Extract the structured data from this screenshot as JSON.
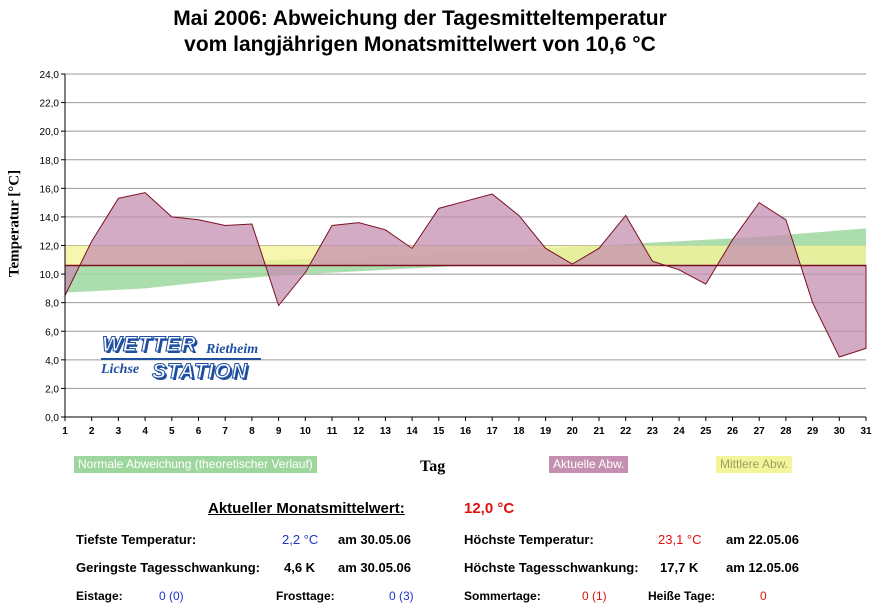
{
  "title_line1": "Mai 2006: Abweichung der Tagesmitteltemperatur",
  "title_line2": "vom langjährigen Monatsmittelwert von 10,6 °C",
  "chart_data": {
    "type": "area",
    "x": [
      1,
      2,
      3,
      4,
      5,
      6,
      7,
      8,
      9,
      10,
      11,
      12,
      13,
      14,
      15,
      16,
      17,
      18,
      19,
      20,
      21,
      22,
      23,
      24,
      25,
      26,
      27,
      28,
      29,
      30,
      31
    ],
    "baseline": 10.6,
    "ylim": [
      0,
      24
    ],
    "yticks": [
      "0,0",
      "2,0",
      "4,0",
      "6,0",
      "8,0",
      "10,0",
      "12,0",
      "14,0",
      "16,0",
      "18,0",
      "20,0",
      "22,0",
      "24,0"
    ],
    "ylabel": "Temperatur [°C]",
    "xlabel": "Tag",
    "series": [
      {
        "name": "Aktuelle Abw.",
        "color": "#c58fb2",
        "values": [
          8.5,
          12.3,
          15.3,
          15.7,
          14.0,
          13.8,
          13.4,
          13.5,
          7.8,
          10.1,
          13.4,
          13.6,
          13.1,
          11.8,
          14.6,
          15.1,
          15.6,
          14.1,
          11.8,
          10.7,
          11.8,
          14.1,
          10.9,
          10.3,
          9.3,
          12.4,
          15.0,
          13.8,
          8.0,
          4.2,
          4.8
        ]
      },
      {
        "name": "Normale Abweichung (theoretischer Verlauf)",
        "color": "#9ed79e",
        "upper": [
          10.6,
          10.65,
          10.7,
          10.75,
          10.8,
          10.85,
          10.9,
          10.95,
          11.0,
          11.05,
          11.1,
          11.15,
          11.2,
          11.3,
          11.4,
          11.5,
          11.6,
          11.7,
          11.8,
          11.9,
          12.0,
          12.1,
          12.2,
          12.3,
          12.4,
          12.5,
          12.6,
          12.75,
          12.9,
          13.05,
          13.2
        ],
        "lower": [
          8.7,
          8.8,
          8.9,
          9.0,
          9.2,
          9.4,
          9.6,
          9.75,
          9.9,
          10.0,
          10.1,
          10.2,
          10.3,
          10.4,
          10.5,
          10.6,
          10.6,
          10.6,
          10.6,
          10.6,
          10.6,
          10.6,
          10.6,
          10.6,
          10.6,
          10.6,
          10.6,
          10.6,
          10.6,
          10.6,
          10.6
        ]
      },
      {
        "name": "Mittlere Abw.",
        "color": "#f4f49a",
        "from": 10.6,
        "to": 12.0
      }
    ]
  },
  "legend": {
    "normal": "Normale Abweichung (theoretischer Verlauf)",
    "aktuell": "Aktuelle Abw.",
    "mittel": "Mittlere Abw."
  },
  "logo": {
    "wetter": "WETTER",
    "rietheim": "Rietheim",
    "lichse": "Lichse",
    "station": "STATION"
  },
  "stats": {
    "monat_label": "Aktueller Monatsmittelwert:",
    "monat_value": "12,0 °C",
    "tiefste_label": "Tiefste Temperatur:",
    "tiefste_value": "2,2 °C",
    "tiefste_date": "am 30.05.06",
    "hoechste_label": "Höchste Temperatur:",
    "hoechste_value": "23,1 °C",
    "hoechste_date": "am 22.05.06",
    "geringste_label": "Geringste Tagesschwankung:",
    "geringste_value": "4,6 K",
    "geringste_date": "am 30.05.06",
    "hoechste_schw_label": "Höchste Tagesschwankung:",
    "hoechste_schw_value": "17,7 K",
    "hoechste_schw_date": "am 12.05.06",
    "eistage_label": "Eistage:",
    "eistage_value": "0 (0)",
    "frosttage_label": "Frosttage:",
    "frosttage_value": "0 (3)",
    "sommertage_label": "Sommertage:",
    "sommertage_value": "0 (1)",
    "heisse_label": "Heiße Tage:",
    "heisse_value": "0"
  }
}
